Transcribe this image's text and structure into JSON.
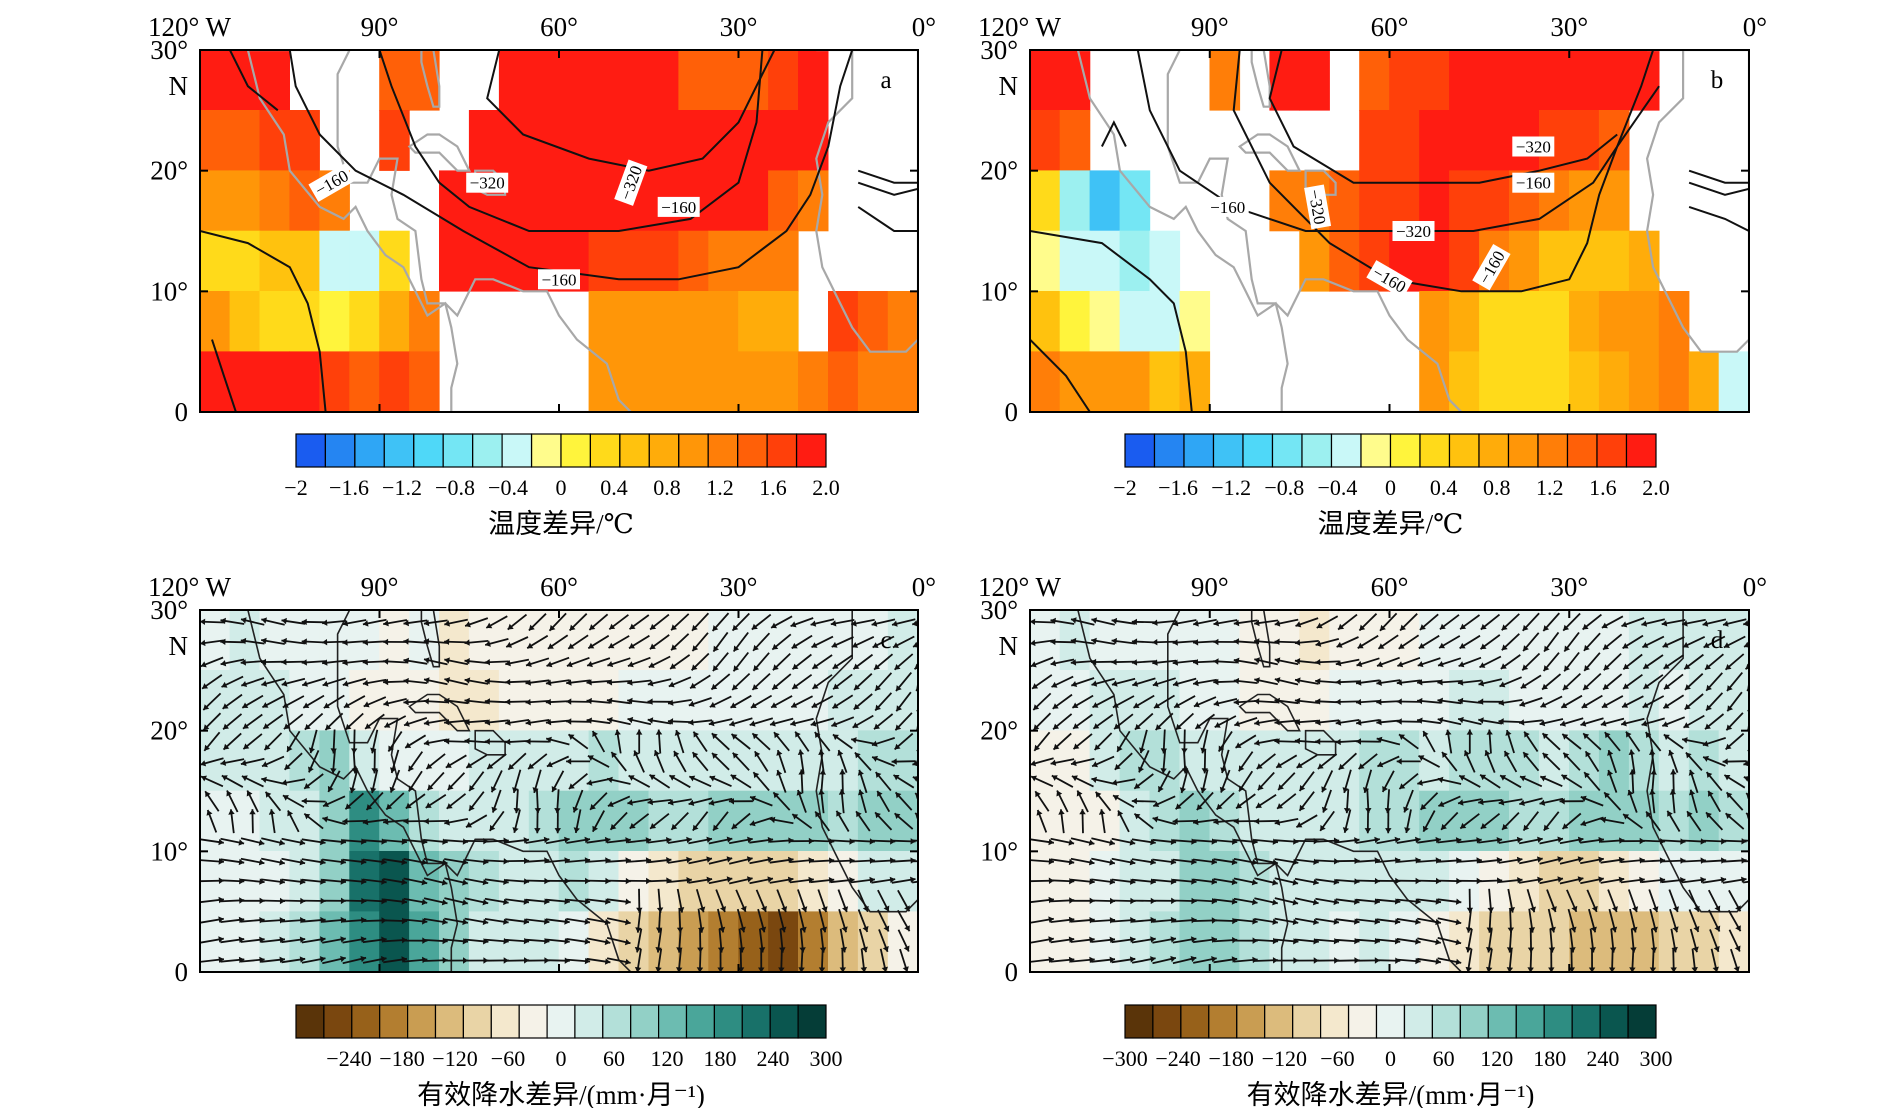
{
  "chart_data": [
    {
      "type": "heatmap",
      "panel_label": "a",
      "variable": "温度差异/℃",
      "contour_levels": [
        -160,
        -320
      ],
      "contour_labels": [
        "−160",
        "−320",
        "−160",
        "−320",
        "−160"
      ],
      "colorbar": {
        "title": "温度差异/℃",
        "tick_labels": [
          "−2",
          "−1.6",
          "−1.2",
          "−0.8",
          "−0.4",
          "0",
          "0.4",
          "0.8",
          "1.2",
          "1.6",
          "2.0"
        ],
        "range": [
          -2.0,
          2.0
        ],
        "palette": [
          "#1a5cf0",
          "#2585f2",
          "#2fa6f5",
          "#3fc2f6",
          "#4fd8f8",
          "#74e6f4",
          "#9cf0f0",
          "#c9f8f8",
          "#fffc8c",
          "#fff43c",
          "#ffda1a",
          "#ffc20e",
          "#ffac0a",
          "#ff9608",
          "#ff7e08",
          "#ff6008",
          "#ff400a",
          "#ff1c12"
        ]
      },
      "field": {
        "lon": [
          -117.5,
          -112.5,
          -107.5,
          -102.5,
          -97.5,
          -92.5,
          -87.5,
          -82.5,
          -77.5,
          -72.5,
          -67.5,
          -62.5,
          -57.5,
          -52.5,
          -47.5,
          -42.5,
          -37.5,
          -32.5,
          -27.5,
          -22.5,
          -17.5,
          -12.5,
          -7.5,
          -2.5
        ],
        "lat": [
          27.5,
          22.5,
          17.5,
          12.5,
          7.5,
          2.5
        ],
        "values": [
          [
            1.9,
            1.9,
            1.8,
            null,
            null,
            null,
            1.4,
            1.5,
            null,
            null,
            1.8,
            2.0,
            2.0,
            2.0,
            1.9,
            1.8,
            1.5,
            1.4,
            1.5,
            1.7,
            1.8,
            null,
            null,
            null
          ],
          [
            1.4,
            1.5,
            1.6,
            1.7,
            null,
            null,
            1.6,
            null,
            null,
            1.8,
            2.0,
            2.0,
            2.0,
            2.0,
            2.0,
            2.0,
            2.0,
            2.0,
            1.9,
            1.9,
            1.8,
            null,
            null,
            null
          ],
          [
            1.0,
            1.0,
            1.2,
            1.4,
            1.3,
            null,
            null,
            null,
            2.0,
            2.0,
            2.0,
            2.0,
            2.0,
            2.0,
            2.0,
            2.0,
            2.0,
            1.9,
            1.8,
            1.5,
            1.2,
            null,
            null,
            null
          ],
          [
            0.3,
            0.4,
            0.5,
            0.5,
            -0.4,
            -0.3,
            0.3,
            null,
            1.9,
            2.0,
            2.0,
            2.0,
            1.8,
            1.6,
            1.6,
            1.6,
            1.5,
            1.3,
            1.2,
            1.2,
            null,
            null,
            null,
            null
          ],
          [
            1.0,
            0.6,
            0.4,
            0.3,
            0.1,
            0.4,
            0.8,
            1.2,
            null,
            null,
            null,
            null,
            null,
            1.1,
            1.0,
            1.1,
            1.1,
            1.1,
            0.7,
            0.8,
            null,
            1.6,
            1.4,
            1.2
          ],
          [
            1.9,
            1.9,
            1.9,
            1.8,
            1.6,
            1.4,
            1.7,
            1.5,
            null,
            null,
            null,
            null,
            null,
            1.1,
            1.0,
            1.0,
            0.9,
            1.0,
            0.9,
            1.0,
            1.2,
            1.4,
            1.3,
            1.2
          ]
        ]
      },
      "axes": {
        "x_ticks": [
          "120° W",
          "90°",
          "60°",
          "30°",
          "0°"
        ],
        "y_ticks": [
          "30°",
          "N",
          "20°",
          "10°",
          "0"
        ],
        "xlim": [
          -120,
          0
        ],
        "ylim": [
          0,
          30
        ]
      }
    },
    {
      "type": "heatmap",
      "panel_label": "b",
      "variable": "温度差异/℃",
      "contour_levels": [
        -160,
        -320
      ],
      "contour_labels": [
        "−160",
        "−320",
        "−320",
        "−160",
        "−320",
        "−160",
        "−160"
      ],
      "colorbar": {
        "title": "温度差异/℃",
        "tick_labels": [
          "−2",
          "−1.6",
          "−1.2",
          "−0.8",
          "−0.4",
          "0",
          "0.4",
          "0.8",
          "1.2",
          "1.6",
          "2.0"
        ],
        "range": [
          -2.0,
          2.0
        ],
        "palette": [
          "#1a5cf0",
          "#2585f2",
          "#2fa6f5",
          "#3fc2f6",
          "#4fd8f8",
          "#74e6f4",
          "#9cf0f0",
          "#c9f8f8",
          "#fffc8c",
          "#fff43c",
          "#ffda1a",
          "#ffc20e",
          "#ffac0a",
          "#ff9608",
          "#ff7e08",
          "#ff6008",
          "#ff400a",
          "#ff1c12"
        ]
      },
      "field": {
        "lon": [
          -117.5,
          -112.5,
          -107.5,
          -102.5,
          -97.5,
          -92.5,
          -87.5,
          -82.5,
          -77.5,
          -72.5,
          -67.5,
          -62.5,
          -57.5,
          -52.5,
          -47.5,
          -42.5,
          -37.5,
          -32.5,
          -27.5,
          -22.5,
          -17.5,
          -12.5,
          -7.5,
          -2.5
        ],
        "lat": [
          27.5,
          22.5,
          17.5,
          12.5,
          7.5,
          2.5
        ],
        "values": [
          [
            1.9,
            1.8,
            null,
            null,
            null,
            null,
            1.2,
            null,
            1.9,
            2.0,
            null,
            1.5,
            1.6,
            1.7,
            1.8,
            1.9,
            1.9,
            1.8,
            1.8,
            1.9,
            2.0,
            null,
            null,
            null
          ],
          [
            1.6,
            1.4,
            null,
            null,
            null,
            null,
            null,
            null,
            null,
            null,
            null,
            1.6,
            1.7,
            1.8,
            1.9,
            1.9,
            1.9,
            1.7,
            1.6,
            1.5,
            null,
            null,
            null,
            null
          ],
          [
            0.4,
            -0.6,
            -1.2,
            -0.8,
            null,
            null,
            null,
            null,
            1.2,
            1.3,
            1.5,
            1.6,
            1.7,
            1.8,
            1.7,
            1.6,
            1.4,
            1.2,
            1.0,
            0.9,
            null,
            null,
            null,
            null
          ],
          [
            -0.2,
            -0.3,
            -0.4,
            -0.5,
            -0.4,
            null,
            null,
            null,
            null,
            1.1,
            1.4,
            1.7,
            1.9,
            1.8,
            1.6,
            1.3,
            1.0,
            0.6,
            0.5,
            0.5,
            0.7,
            null,
            null,
            null
          ],
          [
            0.6,
            0.1,
            -0.2,
            -0.3,
            -0.3,
            -0.2,
            null,
            null,
            null,
            null,
            null,
            null,
            null,
            1.1,
            0.8,
            0.4,
            0.3,
            0.4,
            0.8,
            1.0,
            1.1,
            1.3,
            null,
            null
          ],
          [
            1.2,
            1.1,
            1.0,
            0.9,
            0.6,
            0.7,
            null,
            null,
            null,
            null,
            null,
            null,
            null,
            1.0,
            0.6,
            0.3,
            0.3,
            0.3,
            0.5,
            0.8,
            1.0,
            1.2,
            0.8,
            -0.3
          ]
        ]
      },
      "axes": {
        "x_ticks": [
          "120° W",
          "90°",
          "60°",
          "30°",
          "0°"
        ],
        "y_ticks": [
          "30°",
          "N",
          "20°",
          "10°",
          "0"
        ],
        "xlim": [
          -120,
          0
        ],
        "ylim": [
          0,
          30
        ]
      }
    },
    {
      "type": "heatmap",
      "panel_label": "c",
      "variable": "有效降水差异/(mm·月⁻¹)",
      "vectors": "wind anomaly arrows",
      "colorbar": {
        "title": "有效降水差异/(mm·月⁻¹)",
        "tick_labels": [
          "−240",
          "−180",
          "−120",
          "−60",
          "0",
          "60",
          "120",
          "180",
          "240",
          "300"
        ],
        "range": [
          -300,
          300
        ],
        "palette": [
          "#5a3409",
          "#7a470f",
          "#97611a",
          "#b37e30",
          "#c99d52",
          "#dcbb7c",
          "#e9d4a6",
          "#f4e8cd",
          "#f5f2e8",
          "#e8f3f1",
          "#d1ece8",
          "#b3e0d9",
          "#92d0c6",
          "#6cbcb1",
          "#4aa69a",
          "#2e8d82",
          "#187169",
          "#0a564f",
          "#053d37"
        ]
      },
      "field": {
        "lon": [
          -117.5,
          -112.5,
          -107.5,
          -102.5,
          -97.5,
          -92.5,
          -87.5,
          -82.5,
          -77.5,
          -72.5,
          -67.5,
          -62.5,
          -57.5,
          -52.5,
          -47.5,
          -42.5,
          -37.5,
          -32.5,
          -27.5,
          -22.5,
          -17.5,
          -12.5,
          -7.5,
          -2.5
        ],
        "lat": [
          27.5,
          22.5,
          17.5,
          12.5,
          7.5,
          2.5
        ],
        "values": [
          [
            10,
            20,
            0,
            10,
            0,
            -10,
            -20,
            -10,
            -60,
            -40,
            -30,
            -40,
            -40,
            -30,
            -30,
            -20,
            -20,
            -10,
            -10,
            0,
            0,
            10,
            10,
            20
          ],
          [
            20,
            20,
            20,
            10,
            -10,
            -20,
            -30,
            -20,
            -50,
            -60,
            -40,
            -30,
            -20,
            -20,
            -10,
            -10,
            -10,
            0,
            10,
            0,
            10,
            20,
            20,
            20
          ],
          [
            30,
            30,
            40,
            60,
            80,
            20,
            10,
            0,
            10,
            20,
            20,
            30,
            40,
            50,
            30,
            20,
            20,
            30,
            20,
            30,
            20,
            40,
            50,
            60
          ],
          [
            10,
            10,
            20,
            40,
            100,
            180,
            140,
            60,
            40,
            30,
            40,
            60,
            80,
            110,
            90,
            60,
            60,
            80,
            110,
            90,
            80,
            60,
            100,
            90
          ],
          [
            0,
            -10,
            10,
            40,
            100,
            220,
            260,
            120,
            80,
            60,
            30,
            40,
            60,
            40,
            -20,
            -60,
            -80,
            -100,
            -110,
            -90,
            -60,
            -20,
            20,
            40
          ],
          [
            -10,
            -10,
            20,
            60,
            120,
            180,
            240,
            160,
            80,
            40,
            20,
            30,
            10,
            -60,
            -100,
            -140,
            -160,
            -180,
            -220,
            -240,
            -200,
            -120,
            -80,
            -40
          ]
        ]
      },
      "axes": {
        "x_ticks": [
          "120° W",
          "90°",
          "60°",
          "30°",
          "0°"
        ],
        "y_ticks": [
          "30°",
          "N",
          "20°",
          "10°",
          "0"
        ],
        "xlim": [
          -120,
          0
        ],
        "ylim": [
          0,
          30
        ]
      }
    },
    {
      "type": "heatmap",
      "panel_label": "d",
      "variable": "有效降水差异/(mm·月⁻¹)",
      "vectors": "wind anomaly arrows",
      "colorbar": {
        "title": "有效降水差异/(mm·月⁻¹)",
        "tick_labels": [
          "−300",
          "−240",
          "−180",
          "−120",
          "−60",
          "0",
          "60",
          "120",
          "180",
          "240",
          "300"
        ],
        "range": [
          -300,
          300
        ],
        "palette": [
          "#5a3409",
          "#7a470f",
          "#97611a",
          "#b37e30",
          "#c99d52",
          "#dcbb7c",
          "#e9d4a6",
          "#f4e8cd",
          "#f5f2e8",
          "#e8f3f1",
          "#d1ece8",
          "#b3e0d9",
          "#92d0c6",
          "#6cbcb1",
          "#4aa69a",
          "#2e8d82",
          "#187169",
          "#0a564f",
          "#053d37"
        ]
      },
      "field": {
        "lon": [
          -117.5,
          -112.5,
          -107.5,
          -102.5,
          -97.5,
          -92.5,
          -87.5,
          -82.5,
          -77.5,
          -72.5,
          -67.5,
          -62.5,
          -57.5,
          -52.5,
          -47.5,
          -42.5,
          -37.5,
          -32.5,
          -27.5,
          -22.5,
          -17.5,
          -12.5,
          -7.5,
          -2.5
        ],
        "lat": [
          27.5,
          22.5,
          17.5,
          12.5,
          7.5,
          2.5
        ],
        "values": [
          [
            10,
            20,
            10,
            0,
            0,
            10,
            -10,
            -20,
            -40,
            -50,
            -40,
            -20,
            -20,
            -10,
            0,
            0,
            -10,
            0,
            0,
            10,
            20,
            20,
            20,
            30
          ],
          [
            0,
            10,
            20,
            40,
            20,
            0,
            -10,
            -20,
            -30,
            -20,
            -10,
            -10,
            0,
            10,
            20,
            20,
            10,
            10,
            0,
            10,
            20,
            10,
            20,
            20
          ],
          [
            -20,
            -30,
            20,
            60,
            60,
            40,
            20,
            30,
            20,
            30,
            40,
            60,
            50,
            40,
            50,
            60,
            50,
            40,
            60,
            80,
            60,
            40,
            50,
            40
          ],
          [
            -40,
            -40,
            -30,
            20,
            60,
            80,
            60,
            40,
            30,
            30,
            40,
            50,
            60,
            90,
            100,
            80,
            70,
            60,
            80,
            100,
            90,
            60,
            80,
            70
          ],
          [
            -30,
            -20,
            -10,
            20,
            40,
            80,
            100,
            60,
            40,
            30,
            20,
            20,
            40,
            30,
            -10,
            -40,
            -60,
            -80,
            -80,
            -60,
            -40,
            -10,
            0,
            10
          ],
          [
            -20,
            -20,
            0,
            20,
            60,
            80,
            100,
            60,
            30,
            20,
            10,
            20,
            10,
            -30,
            -60,
            -80,
            -100,
            -110,
            -130,
            -140,
            -120,
            -100,
            -80,
            -60
          ]
        ]
      },
      "axes": {
        "x_ticks": [
          "120° W",
          "90°",
          "60°",
          "30°",
          "0°"
        ],
        "y_ticks": [
          "30°",
          "N",
          "20°",
          "10°",
          "0"
        ],
        "xlim": [
          -120,
          0
        ],
        "ylim": [
          0,
          30
        ]
      }
    }
  ]
}
